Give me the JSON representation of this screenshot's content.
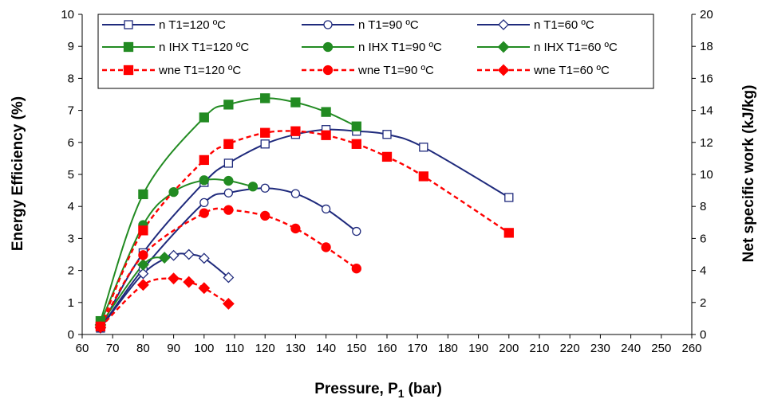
{
  "chart_data": {
    "type": "line",
    "xlabel": "Pressure, P",
    "xlabel_subscript": "1",
    "xlabel_unit": "(bar)",
    "ylabel": "Energy Efficiency (%)",
    "y2label": "Net specific work (kJ/kg)",
    "xlim": [
      60,
      260
    ],
    "ylim": [
      0,
      10
    ],
    "y2lim": [
      0,
      20
    ],
    "x_ticks": [
      "60",
      "70",
      "80",
      "90",
      "100",
      "110",
      "120",
      "130",
      "140",
      "150",
      "160",
      "170",
      "180",
      "190",
      "200",
      "210",
      "220",
      "230",
      "240",
      "250",
      "260"
    ],
    "y_ticks": [
      "0",
      "1",
      "2",
      "3",
      "4",
      "5",
      "6",
      "7",
      "8",
      "9",
      "10"
    ],
    "y2_ticks": [
      "0",
      "2",
      "4",
      "6",
      "8",
      "10",
      "12",
      "14",
      "16",
      "18",
      "20"
    ],
    "grid": false,
    "legend_position": "top",
    "series": [
      {
        "name": "n T1=120 ºC",
        "axis": "left",
        "color": "#1F2A7C",
        "style": "solid",
        "marker": "square-open",
        "x": [
          66,
          80,
          100,
          108,
          120,
          130,
          140,
          150,
          160,
          172,
          200
        ],
        "y": [
          0.2,
          2.55,
          4.75,
          5.35,
          5.95,
          6.25,
          6.4,
          6.35,
          6.25,
          5.85,
          4.28
        ]
      },
      {
        "name": "n T1=90 ºC",
        "axis": "left",
        "color": "#1F2A7C",
        "style": "solid",
        "marker": "circle-open",
        "x": [
          66,
          80,
          100,
          108,
          120,
          130,
          140,
          150
        ],
        "y": [
          0.2,
          2.05,
          4.12,
          4.42,
          4.57,
          4.4,
          3.92,
          3.22
        ]
      },
      {
        "name": "n T1=60 ºC",
        "axis": "left",
        "color": "#1F2A7C",
        "style": "solid",
        "marker": "diamond-open",
        "x": [
          66,
          80,
          90,
          95,
          100,
          108
        ],
        "y": [
          0.2,
          1.9,
          2.47,
          2.5,
          2.38,
          1.78
        ]
      },
      {
        "name": "n IHX T1=120 ºC",
        "axis": "left",
        "color": "#228B22",
        "style": "solid",
        "marker": "square-filled",
        "x": [
          66,
          80,
          100,
          108,
          120,
          130,
          140,
          150
        ],
        "y": [
          0.42,
          4.38,
          6.78,
          7.18,
          7.38,
          7.25,
          6.95,
          6.5
        ]
      },
      {
        "name": "n IHX T1=90 ºC",
        "axis": "left",
        "color": "#228B22",
        "style": "solid",
        "marker": "circle-filled",
        "x": [
          66,
          80,
          90,
          100,
          108,
          116
        ],
        "y": [
          0.35,
          3.42,
          4.45,
          4.82,
          4.8,
          4.62
        ]
      },
      {
        "name": "n IHX T1=60 ºC",
        "axis": "left",
        "color": "#228B22",
        "style": "solid",
        "marker": "diamond-filled",
        "x": [
          66,
          80,
          87
        ],
        "y": [
          0.3,
          2.18,
          2.4
        ]
      },
      {
        "name": "wne T1=120 ºC",
        "axis": "right",
        "color": "#FF0000",
        "style": "dashed",
        "marker": "square-filled",
        "x": [
          66,
          80,
          100,
          108,
          120,
          130,
          140,
          150,
          160,
          172,
          200
        ],
        "y": [
          0.5,
          6.5,
          10.9,
          11.9,
          12.6,
          12.7,
          12.45,
          11.9,
          11.1,
          9.88,
          6.35
        ]
      },
      {
        "name": "wne T1=90 ºC",
        "axis": "right",
        "color": "#FF0000",
        "style": "dashed",
        "marker": "circle-filled",
        "x": [
          66,
          80,
          100,
          108,
          120,
          130,
          140,
          150
        ],
        "y": [
          0.5,
          4.96,
          7.58,
          7.78,
          7.42,
          6.62,
          5.45,
          4.12
        ]
      },
      {
        "name": "wne T1=60 ºC",
        "axis": "right",
        "color": "#FF0000",
        "style": "dashed",
        "marker": "diamond-filled",
        "x": [
          66,
          80,
          90,
          95,
          100,
          108
        ],
        "y": [
          0.45,
          3.1,
          3.5,
          3.28,
          2.9,
          1.92
        ]
      }
    ]
  }
}
